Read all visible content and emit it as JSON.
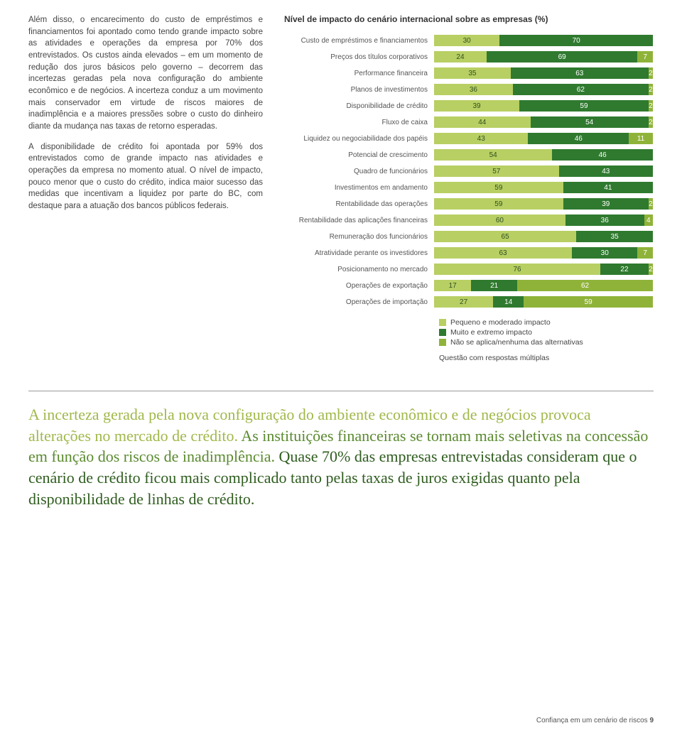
{
  "colors": {
    "seg_low": "#b8cf63",
    "seg_high": "#2f7a2f",
    "seg_na": "#8fb339",
    "text_dark": "#333333"
  },
  "left_text": {
    "p1": "Além disso, o encarecimento do custo de empréstimos e financiamentos foi apontado como tendo grande impacto sobre as atividades e operações da empresa por 70% dos entrevistados. Os custos ainda elevados – em um momento de redução dos juros básicos pelo governo – decorrem das incertezas geradas pela nova configuração do ambiente econômico e de negócios. A incerteza conduz a um movimento mais conservador em virtude de riscos maiores de inadimplência e a maiores pressões sobre o custo do dinheiro diante da mudança nas taxas de retorno esperadas.",
    "p2": "A disponibilidade de crédito foi apontada por 59% dos entrevistados como de grande impacto nas atividades e operações da empresa no momento atual. O nível de impacto, pouco menor que o custo do crédito, indica maior sucesso das medidas que incentivam a liquidez por parte do BC, com destaque para a atuação dos bancos públicos federais."
  },
  "chart": {
    "title": "Nível de impacto do cenário internacional sobre as empresas (%)",
    "rows": [
      {
        "label": "Custo de empréstimos e financiamentos",
        "segs": [
          {
            "v": 30,
            "c": "seg_low"
          },
          {
            "v": 70,
            "c": "seg_high"
          }
        ]
      },
      {
        "label": "Preços dos títulos corporativos",
        "segs": [
          {
            "v": 24,
            "c": "seg_low"
          },
          {
            "v": 69,
            "c": "seg_high"
          },
          {
            "v": 7,
            "c": "seg_na"
          }
        ]
      },
      {
        "label": "Performance financeira",
        "segs": [
          {
            "v": 35,
            "c": "seg_low"
          },
          {
            "v": 63,
            "c": "seg_high"
          },
          {
            "v": 2,
            "c": "seg_na"
          }
        ]
      },
      {
        "label": "Planos de investimentos",
        "segs": [
          {
            "v": 36,
            "c": "seg_low"
          },
          {
            "v": 62,
            "c": "seg_high"
          },
          {
            "v": 2,
            "c": "seg_na"
          }
        ]
      },
      {
        "label": "Disponibilidade de crédito",
        "segs": [
          {
            "v": 39,
            "c": "seg_low"
          },
          {
            "v": 59,
            "c": "seg_high"
          },
          {
            "v": 2,
            "c": "seg_na"
          }
        ]
      },
      {
        "label": "Fluxo de caixa",
        "segs": [
          {
            "v": 44,
            "c": "seg_low"
          },
          {
            "v": 54,
            "c": "seg_high"
          },
          {
            "v": 2,
            "c": "seg_na"
          }
        ]
      },
      {
        "label": "Liquidez ou negociabilidade dos papéis",
        "segs": [
          {
            "v": 43,
            "c": "seg_low"
          },
          {
            "v": 46,
            "c": "seg_high"
          },
          {
            "v": 11,
            "c": "seg_na"
          }
        ]
      },
      {
        "label": "Potencial de crescimento",
        "segs": [
          {
            "v": 54,
            "c": "seg_low"
          },
          {
            "v": 46,
            "c": "seg_high"
          }
        ]
      },
      {
        "label": "Quadro de funcionários",
        "segs": [
          {
            "v": 57,
            "c": "seg_low"
          },
          {
            "v": 43,
            "c": "seg_high"
          }
        ]
      },
      {
        "label": "Investimentos em andamento",
        "segs": [
          {
            "v": 59,
            "c": "seg_low"
          },
          {
            "v": 41,
            "c": "seg_high"
          }
        ]
      },
      {
        "label": "Rentabilidade das operações",
        "segs": [
          {
            "v": 59,
            "c": "seg_low"
          },
          {
            "v": 39,
            "c": "seg_high"
          },
          {
            "v": 2,
            "c": "seg_na"
          }
        ]
      },
      {
        "label": "Rentabilidade das aplicações financeiras",
        "segs": [
          {
            "v": 60,
            "c": "seg_low"
          },
          {
            "v": 36,
            "c": "seg_high"
          },
          {
            "v": 4,
            "c": "seg_na"
          }
        ]
      },
      {
        "label": "Remuneração dos funcionários",
        "segs": [
          {
            "v": 65,
            "c": "seg_low"
          },
          {
            "v": 35,
            "c": "seg_high"
          }
        ]
      },
      {
        "label": "Atratividade perante os investidores",
        "segs": [
          {
            "v": 63,
            "c": "seg_low"
          },
          {
            "v": 30,
            "c": "seg_high"
          },
          {
            "v": 7,
            "c": "seg_na"
          }
        ]
      },
      {
        "label": "Posicionamento no mercado",
        "segs": [
          {
            "v": 76,
            "c": "seg_low"
          },
          {
            "v": 22,
            "c": "seg_high"
          },
          {
            "v": 2,
            "c": "seg_na"
          }
        ]
      },
      {
        "label": "Operações de exportação",
        "segs": [
          {
            "v": 17,
            "c": "seg_low"
          },
          {
            "v": 21,
            "c": "seg_high"
          },
          {
            "v": 62,
            "c": "seg_na"
          }
        ]
      },
      {
        "label": "Operações de importação",
        "segs": [
          {
            "v": 27,
            "c": "seg_low"
          },
          {
            "v": 14,
            "c": "seg_high"
          },
          {
            "v": 59,
            "c": "seg_na"
          }
        ]
      }
    ],
    "legend": [
      {
        "label": "Pequeno e moderado impacto",
        "c": "seg_low"
      },
      {
        "label": "Muito e extremo impacto",
        "c": "seg_high"
      },
      {
        "label": "Não se aplica/nenhuma das alternativas",
        "c": "seg_na"
      }
    ],
    "note": "Questão com respostas múltiplas"
  },
  "pullquote": {
    "s1": "A incerteza gerada pela nova configuração do ambiente econômico e de negócios provoca alterações no mercado de crédito. ",
    "s2": "As instituições financeiras se tornam mais seletivas na concessão em função dos riscos de inadimplência. ",
    "s3": "Quase 70% das empresas entrevistadas consideram que o cenário de crédito ficou mais complicado tanto pelas taxas de juros exigidas quanto pela disponibilidade de linhas de crédito."
  },
  "footer": {
    "text": "Confiança em um cenário de riscos",
    "page": "9"
  }
}
